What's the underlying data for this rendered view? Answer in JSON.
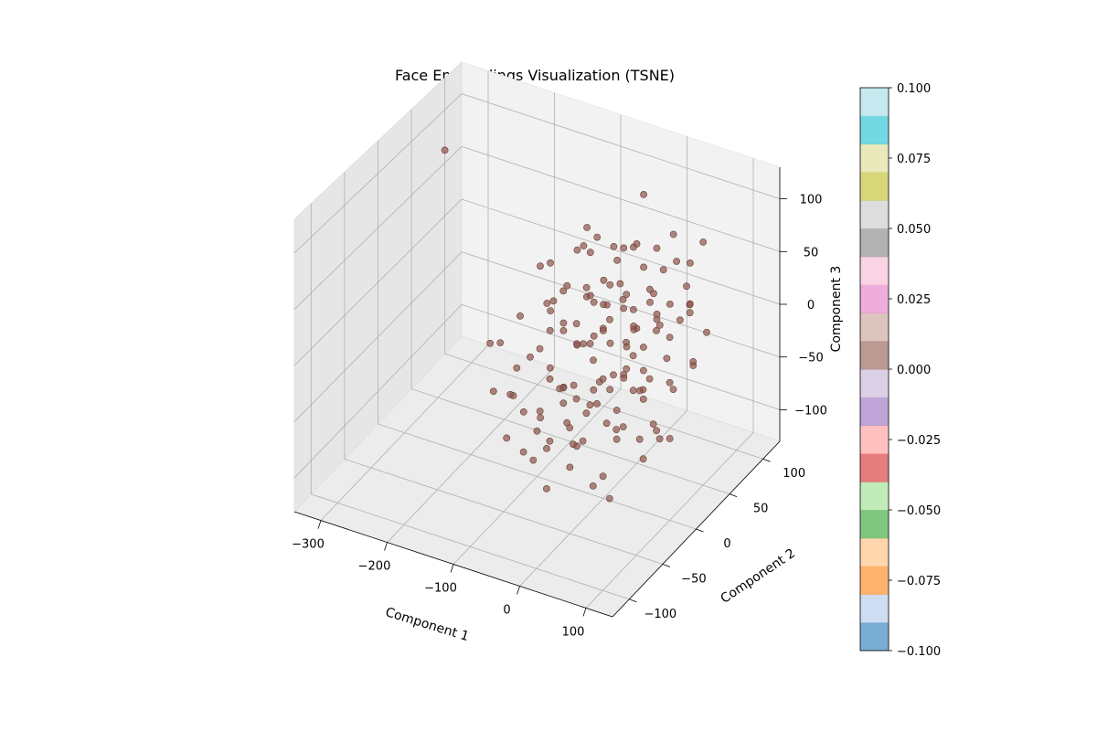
{
  "chart_data": {
    "type": "scatter",
    "projection": "3d",
    "title": "Face Embeddings Visualization (TSNE)",
    "xlabel": "Component 1",
    "ylabel": "Component 2",
    "zlabel": "Component 3",
    "x_ticks": [
      -300,
      -200,
      -100,
      0,
      100
    ],
    "y_ticks": [
      -100,
      -50,
      0,
      50,
      100
    ],
    "z_ticks": [
      -100,
      -50,
      0,
      50,
      100
    ],
    "xlim": [
      -340,
      140
    ],
    "ylim": [
      -125,
      125
    ],
    "zlim": [
      -130,
      130
    ],
    "grid": true,
    "point_color": "#8c564b",
    "colorbar": {
      "ticks": [
        "−0.100",
        "−0.075",
        "−0.050",
        "−0.025",
        "0.000",
        "0.025",
        "0.050",
        "0.075",
        "0.100"
      ],
      "range": [
        -0.1,
        0.1
      ],
      "colors": [
        "#1f77b4",
        "#aec7e8",
        "#ff7f0e",
        "#ffbb78",
        "#2ca02c",
        "#98df8a",
        "#d62728",
        "#ff9896",
        "#9467bd",
        "#c5b0d5",
        "#8c564b",
        "#c49c94",
        "#e377c2",
        "#f7b6d2",
        "#7f7f7f",
        "#c7c7c7",
        "#bcbd22",
        "#dbdb8d",
        "#17becf",
        "#9edae5"
      ],
      "alpha": 0.6
    },
    "points": [
      [
        -330,
        90,
        70
      ],
      [
        -95,
        0,
        -75
      ],
      [
        -60,
        40,
        60
      ],
      [
        -40,
        -20,
        35
      ],
      [
        -20,
        30,
        -10
      ],
      [
        0,
        10,
        60
      ],
      [
        20,
        -60,
        70
      ],
      [
        30,
        20,
        20
      ],
      [
        40,
        60,
        20
      ],
      [
        60,
        -40,
        -30
      ],
      [
        80,
        0,
        40
      ],
      [
        100,
        30,
        50
      ],
      [
        -80,
        40,
        -30
      ],
      [
        -70,
        -40,
        10
      ],
      [
        -50,
        20,
        80
      ],
      [
        -30,
        60,
        -60
      ],
      [
        -10,
        -10,
        -40
      ],
      [
        10,
        50,
        -20
      ],
      [
        30,
        -30,
        50
      ],
      [
        50,
        80,
        10
      ],
      [
        70,
        10,
        -60
      ],
      [
        90,
        -20,
        10
      ],
      [
        -90,
        -30,
        -50
      ],
      [
        -60,
        -70,
        20
      ],
      [
        -40,
        0,
        -90
      ],
      [
        -20,
        80,
        30
      ],
      [
        0,
        -50,
        -70
      ],
      [
        20,
        30,
        90
      ],
      [
        40,
        -10,
        -50
      ],
      [
        60,
        50,
        70
      ],
      [
        -100,
        20,
        10
      ],
      [
        -75,
        -10,
        40
      ],
      [
        -55,
        60,
        0
      ],
      [
        -35,
        -60,
        -20
      ],
      [
        -15,
        40,
        40
      ],
      [
        5,
        -20,
        10
      ],
      [
        25,
        70,
        -40
      ],
      [
        45,
        -70,
        0
      ],
      [
        65,
        20,
        30
      ],
      [
        85,
        -50,
        60
      ],
      [
        -85,
        70,
        -10
      ],
      [
        -65,
        10,
        -80
      ],
      [
        -45,
        -30,
        60
      ],
      [
        -25,
        -80,
        -50
      ],
      [
        -5,
        20,
        -30
      ],
      [
        15,
        -40,
        90
      ],
      [
        35,
        40,
        -80
      ],
      [
        55,
        -20,
        80
      ],
      [
        75,
        60,
        -30
      ],
      [
        95,
        40,
        -10
      ],
      [
        -70,
        -50,
        -70
      ],
      [
        -50,
        50,
        30
      ],
      [
        -30,
        10,
        0
      ],
      [
        -10,
        -70,
        20
      ],
      [
        10,
        10,
        -80
      ],
      [
        30,
        -80,
        -10
      ],
      [
        50,
        20,
        60
      ],
      [
        70,
        -10,
        -10
      ],
      [
        -80,
        0,
        70
      ],
      [
        -60,
        -20,
        -10
      ],
      [
        -40,
        70,
        50
      ],
      [
        -20,
        -40,
        80
      ],
      [
        0,
        60,
        -50
      ],
      [
        20,
        -10,
        -20
      ],
      [
        40,
        30,
        40
      ],
      [
        60,
        -60,
        -60
      ],
      [
        80,
        70,
        80
      ],
      [
        -95,
        -60,
        30
      ],
      [
        -55,
        -90,
        -30
      ],
      [
        -15,
        90,
        0
      ],
      [
        25,
        -90,
        30
      ],
      [
        65,
        90,
        -20
      ],
      [
        -75,
        30,
        -60
      ],
      [
        -35,
        -50,
        -60
      ],
      [
        5,
        40,
        20
      ],
      [
        45,
        0,
        10
      ],
      [
        85,
        -30,
        -40
      ],
      [
        -65,
        80,
        40
      ],
      [
        -25,
        0,
        50
      ],
      [
        15,
        -60,
        -40
      ],
      [
        55,
        50,
        -50
      ],
      [
        -85,
        -80,
        0
      ],
      [
        -45,
        90,
        -40
      ],
      [
        -5,
        -90,
        60
      ],
      [
        35,
        10,
        -30
      ],
      [
        75,
        -80,
        40
      ],
      [
        -90,
        50,
        50
      ],
      [
        -50,
        -10,
        20
      ],
      [
        -10,
        30,
        -70
      ],
      [
        30,
        50,
        10
      ],
      [
        70,
        30,
        -80
      ],
      [
        -70,
        90,
        20
      ],
      [
        -30,
        -30,
        -30
      ],
      [
        10,
        70,
        60
      ],
      [
        50,
        -50,
        20
      ],
      [
        90,
        10,
        30
      ],
      [
        -60,
        0,
        -40
      ],
      [
        -20,
        50,
        10
      ],
      [
        20,
        -20,
        40
      ],
      [
        60,
        -90,
        -10
      ],
      [
        -100,
        -40,
        -30
      ],
      [
        -80,
        -90,
        50
      ],
      [
        -40,
        30,
        -70
      ],
      [
        0,
        -30,
        30
      ],
      [
        40,
        90,
        40
      ],
      [
        80,
        -70,
        -70
      ],
      [
        -55,
        30,
        90
      ],
      [
        -15,
        -70,
        -80
      ],
      [
        25,
        80,
        70
      ],
      [
        65,
        -30,
        20
      ],
      [
        -35,
        20,
        -50
      ],
      [
        5,
        0,
        -60
      ],
      [
        45,
        70,
        0
      ],
      [
        -75,
        -20,
        80
      ],
      [
        -5,
        50,
        70
      ],
      [
        35,
        -50,
        -80
      ],
      [
        75,
        50,
        50
      ],
      [
        -95,
        80,
        -50
      ],
      [
        -65,
        -60,
        60
      ],
      [
        15,
        20,
        0
      ],
      [
        55,
        0,
        -20
      ],
      [
        -45,
        -90,
        10
      ],
      [
        -25,
        70,
        -20
      ],
      [
        95,
        -10,
        -50
      ],
      [
        -85,
        30,
        30
      ],
      [
        -50,
        80,
        -80
      ],
      [
        -10,
        -50,
        0
      ],
      [
        30,
        60,
        50
      ],
      [
        70,
        -40,
        90
      ],
      [
        -30,
        90,
        90
      ],
      [
        10,
        -90,
        -20
      ],
      [
        50,
        10,
        -90
      ],
      [
        -70,
        60,
        60
      ],
      [
        -20,
        -20,
        20
      ],
      [
        20,
        40,
        -60
      ],
      [
        60,
        70,
        10
      ],
      [
        -90,
        -10,
        -80
      ],
      [
        -40,
        -40,
        40
      ],
      [
        0,
        80,
        -10
      ],
      [
        40,
        -30,
        60
      ],
      [
        80,
        20,
        -20
      ],
      [
        -60,
        40,
        20
      ],
      [
        -10,
        10,
        40
      ],
      [
        30,
        -70,
        10
      ]
    ]
  }
}
